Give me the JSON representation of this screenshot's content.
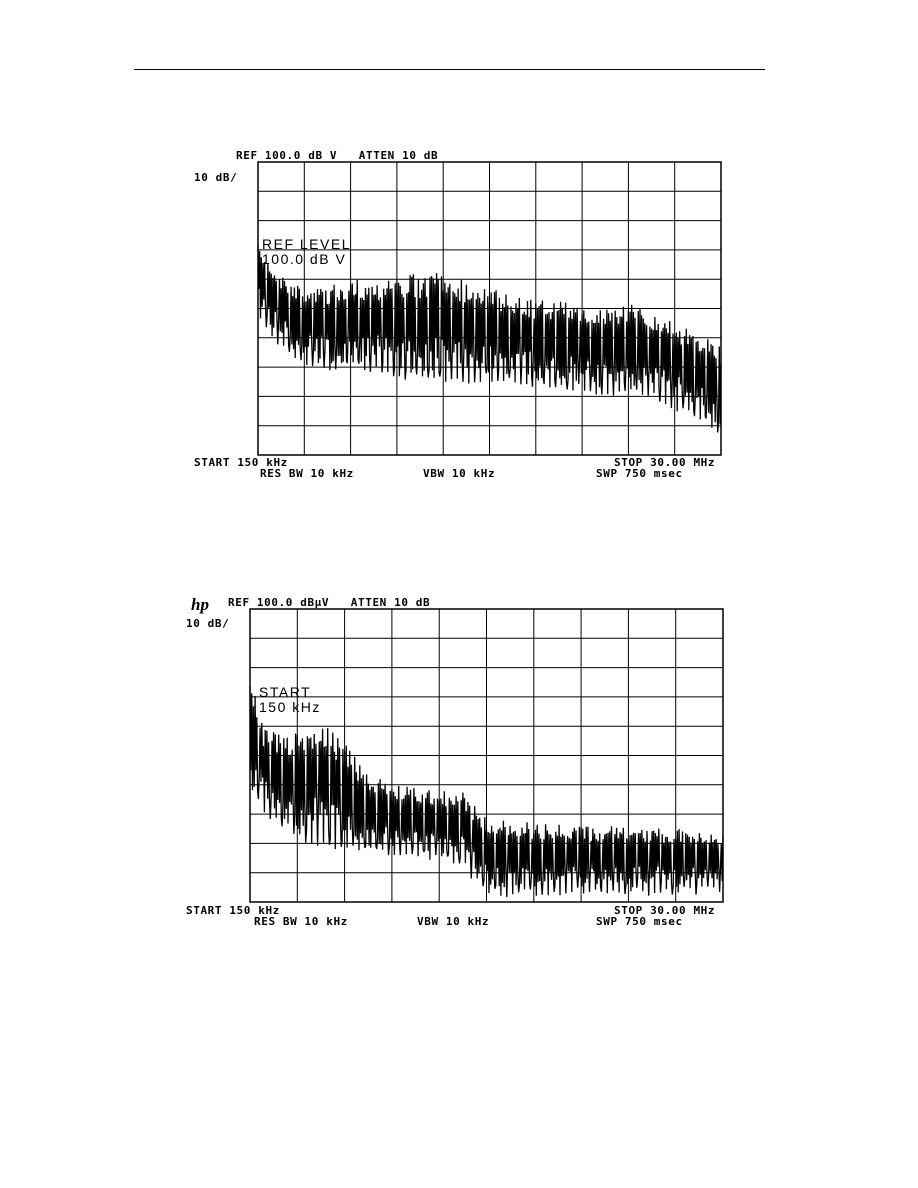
{
  "chart_data": [
    {
      "type": "line",
      "top_text": "REF 100.0 dB V   ATTEN 10 dB",
      "scale_label": "10 dB/",
      "overlay_line1": "REF LEVEL",
      "overlay_line2": "100.0 dB V",
      "start_label": "START 150 kHz",
      "stop_label": "STOP 30.00 MHz",
      "res_bw_label": "RES BW 10 kHz",
      "vbw_label": "VBW 10 kHz",
      "swp_label": "SWP 750 msec",
      "xlim_mhz": [
        0.15,
        30.0
      ],
      "ylim_dbuv": [
        0,
        100
      ],
      "grid": true,
      "x_mhz": [
        0.15,
        1.5,
        3,
        4.5,
        6,
        7.5,
        9,
        10.5,
        12,
        13.5,
        15,
        16.5,
        18,
        19.5,
        21,
        22.5,
        24,
        25.5,
        27,
        28.5,
        30
      ],
      "peak_dbuv": [
        72,
        62,
        58,
        57,
        60,
        60,
        61,
        62,
        63,
        60,
        57,
        55,
        53,
        53,
        51,
        51,
        52,
        50,
        45,
        42,
        38
      ],
      "floor_dbuv": [
        50,
        40,
        33,
        31,
        32,
        31,
        29,
        28,
        28,
        27,
        28,
        27,
        26,
        25,
        25,
        22,
        23,
        22,
        18,
        14,
        10
      ],
      "series_color": "#000000"
    },
    {
      "type": "line",
      "logo": "hp",
      "top_text": "REF 100.0 dBµV   ATTEN 10 dB",
      "scale_label": "10 dB/",
      "overlay_line1": "START",
      "overlay_line2": "150 kHz",
      "start_label": "START 150 kHz",
      "stop_label": "STOP 30.00 MHz",
      "res_bw_label": "RES BW 10 kHz",
      "vbw_label": "VBW 10 kHz",
      "swp_label": "SWP 750 msec",
      "xlim_mhz": [
        0.15,
        30.0
      ],
      "ylim_dbuv": [
        0,
        100
      ],
      "grid": true,
      "x_mhz": [
        0.15,
        1,
        2.5,
        3.5,
        4.5,
        6,
        7.5,
        9,
        10.5,
        12,
        13.5,
        15,
        16.5,
        18,
        21,
        24,
        27,
        30
      ],
      "peak_dbuv": [
        78,
        60,
        57,
        58,
        62,
        55,
        45,
        40,
        39,
        38,
        38,
        29,
        28,
        27,
        26,
        26,
        25,
        24
      ],
      "floor_dbuv": [
        42,
        33,
        27,
        23,
        22,
        20,
        19,
        18,
        18,
        17,
        15,
        5,
        4,
        5,
        5,
        5,
        5,
        6
      ],
      "series_color": "#000000"
    }
  ]
}
